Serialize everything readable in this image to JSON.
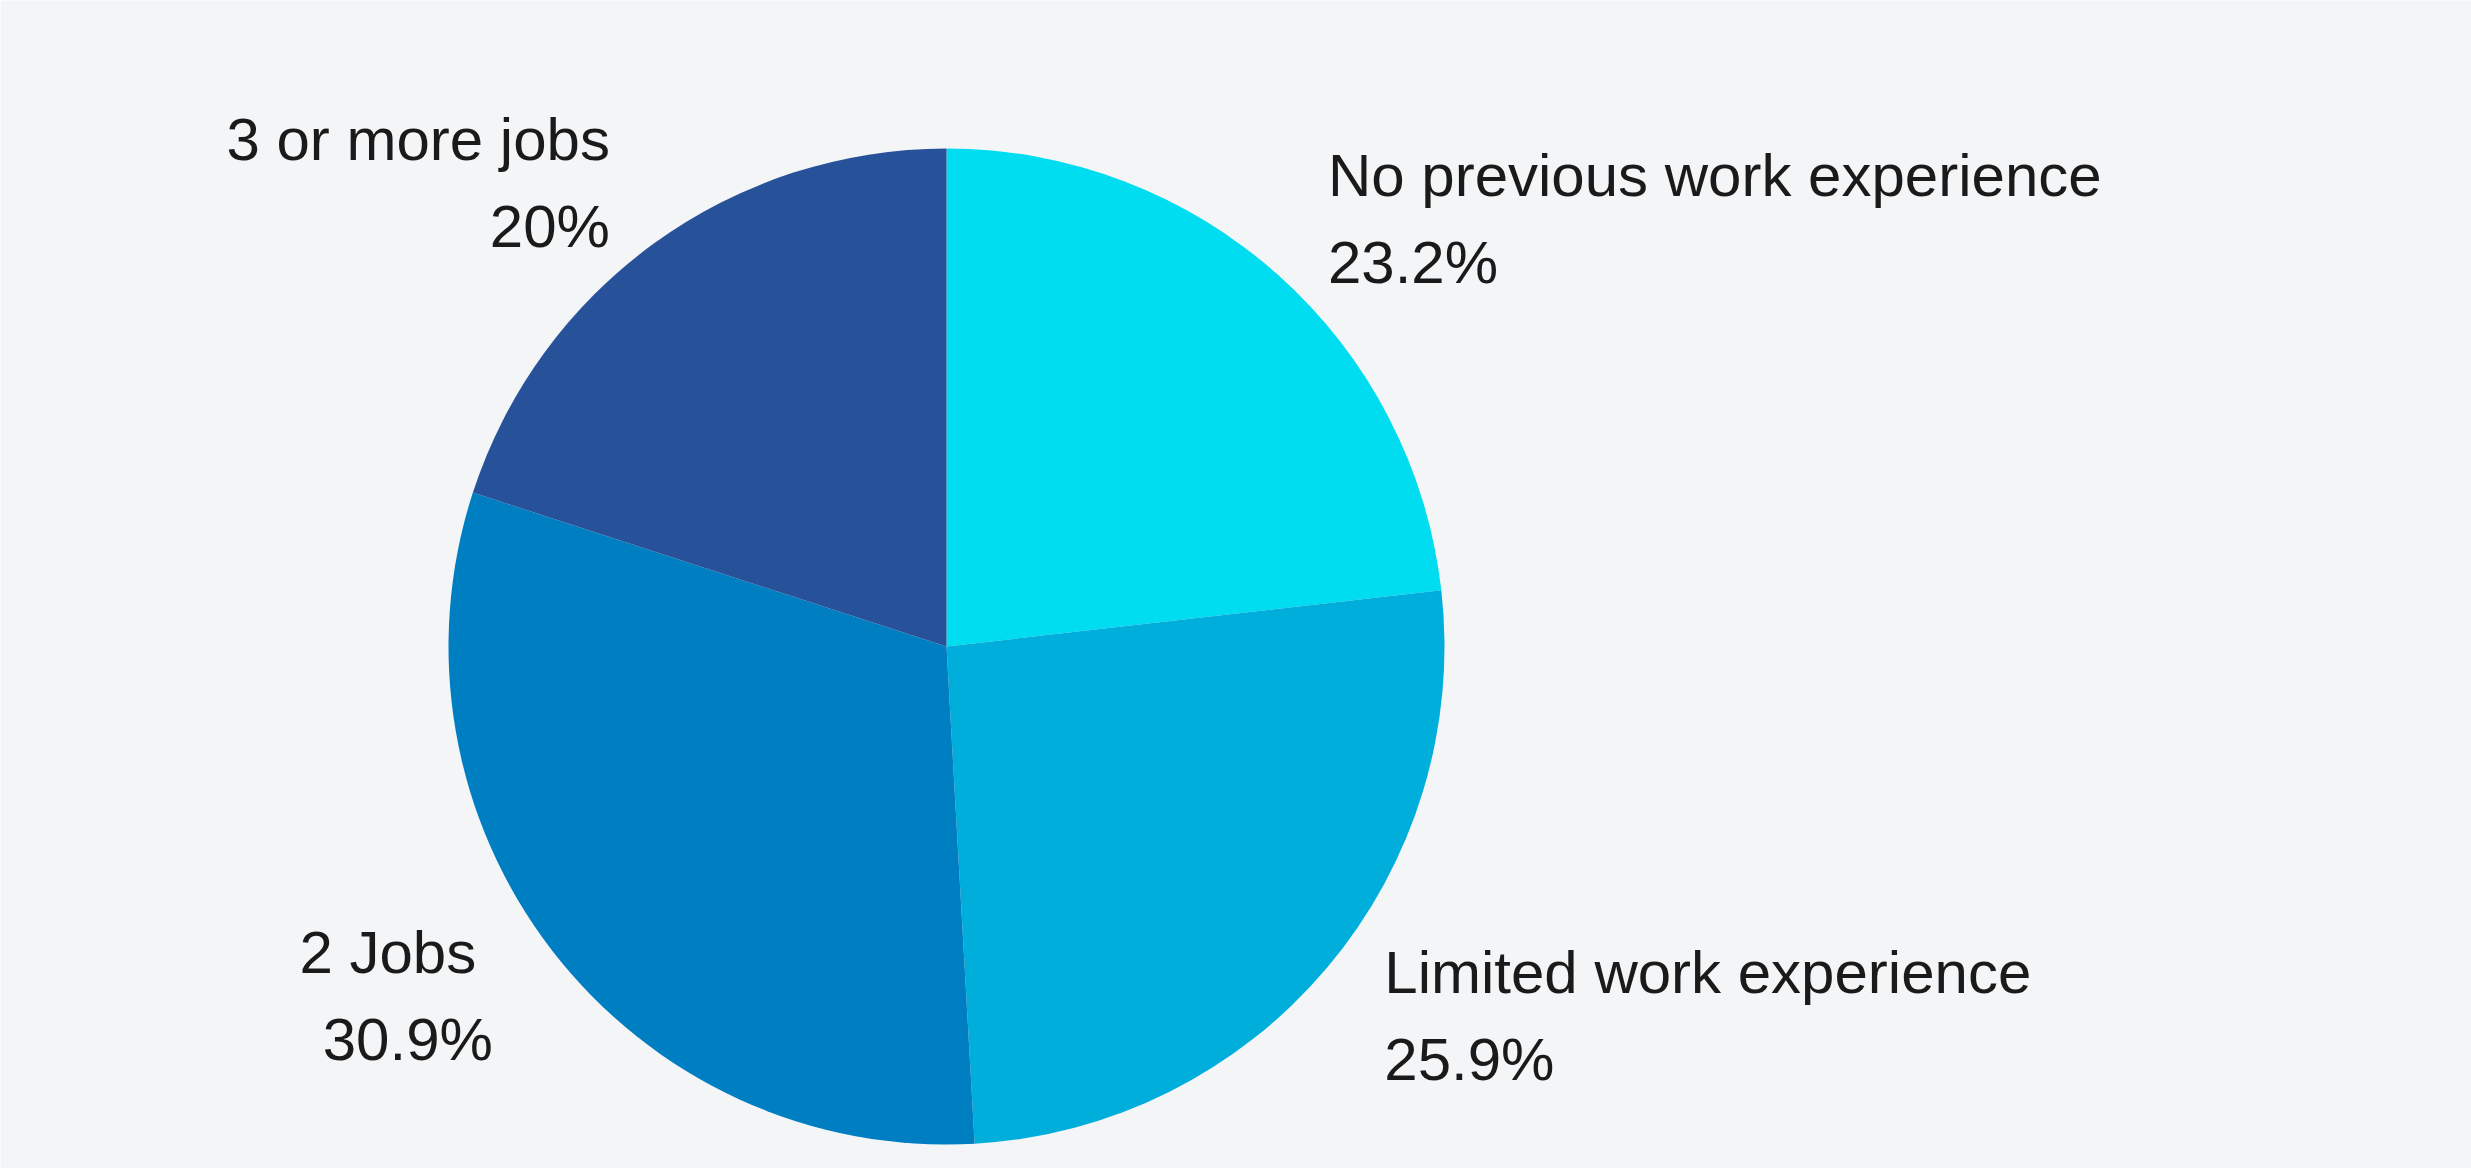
{
  "chart_data": {
    "type": "pie",
    "categories": [
      "No previous work experience",
      "Limited work experience",
      "2  Jobs",
      "3 or more jobs"
    ],
    "values": [
      23.2,
      25.9,
      30.9,
      20
    ],
    "colors": [
      "#00dcf0",
      "#00aedc",
      "#007ec2",
      "#27529a"
    ],
    "value_labels": [
      "23.2%",
      "25.9%",
      "30.9%",
      "20%"
    ]
  }
}
